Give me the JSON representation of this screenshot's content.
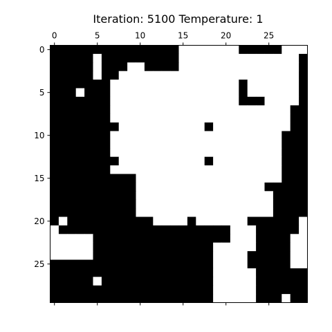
{
  "chart_data": {
    "type": "heatmap",
    "title": "Iteration: 5100 Temperature: 1",
    "xlabel": "",
    "ylabel": "",
    "xlim": [
      -0.5,
      29.5
    ],
    "ylim": [
      29.5,
      -0.5
    ],
    "x_ticks": [
      0,
      5,
      10,
      15,
      20,
      25
    ],
    "y_ticks": [
      0,
      5,
      10,
      15,
      20,
      25
    ],
    "x_tick_positions": [
      "top",
      "bottom"
    ],
    "x_tick_labels_shown": "top",
    "colormap": {
      "0": "#000000",
      "1": "#ffffff"
    },
    "grid": false,
    "values": [
      "000000000000000111111100000111",
      "000001000000000111111111111110",
      "000001000110000111111111111110",
      "000001001111111111111111111110",
      "000000011111111111111101111110",
      "000100011111111111111101111110",
      "000000011111111111111100011110",
      "000000011111111111111111111100",
      "000000011111111111111111111100",
      "000000001111111111011111111100",
      "000000011111111111111111111000",
      "000000011111111111111111111000",
      "000000011111111111111111111000",
      "000000001111111111011111111000",
      "000000011111111111111111111000",
      "000000000011111111111111111000",
      "000000000011111111111111100000",
      "000000000011111111111111110000",
      "000000000011111111111111110000",
      "000000000011111111111111110000",
      "010000000000111101111110000001",
      "100000000000000000000111000001",
      "111110000000000000000111000011",
      "111110000000000000011111000011",
      "111110000000000000011110000011",
      "000000000000000000011110000011",
      "000000000000000000011111000000",
      "000001000000000000011111000000",
      "000000000000000000011111000000",
      "000000000000000000011111000100"
    ]
  }
}
